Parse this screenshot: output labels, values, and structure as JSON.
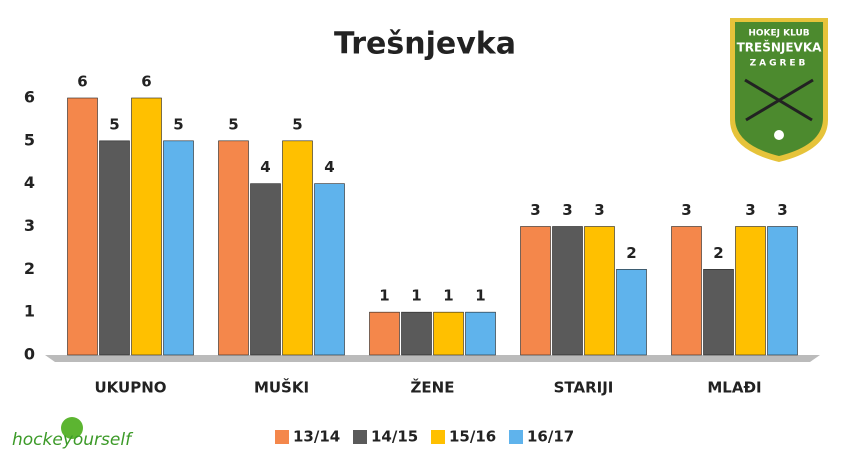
{
  "chart_data": {
    "type": "bar",
    "title": "Trešnjevka",
    "categories": [
      "UKUPNO",
      "MUŠKI",
      "ŽENE",
      "STARIJI",
      "MLAĐI"
    ],
    "series": [
      {
        "name": "13/14",
        "color": "#f4874b",
        "values": [
          6,
          5,
          1,
          3,
          3
        ]
      },
      {
        "name": "14/15",
        "color": "#5a5a5a",
        "values": [
          5,
          4,
          1,
          3,
          2
        ]
      },
      {
        "name": "15/16",
        "color": "#ffc000",
        "values": [
          6,
          5,
          1,
          3,
          3
        ]
      },
      {
        "name": "16/17",
        "color": "#5fb3ec",
        "values": [
          5,
          4,
          1,
          2,
          3
        ]
      }
    ],
    "ylim": [
      0,
      6
    ],
    "yticks": [
      0,
      1,
      2,
      3,
      4,
      5,
      6
    ],
    "grid": false,
    "legend": "bottom"
  },
  "logo": {
    "lines": [
      "HOKEJ KLUB",
      "TREŠNJEVKA",
      "ZAGREB"
    ]
  },
  "watermark": "hockeyourself"
}
